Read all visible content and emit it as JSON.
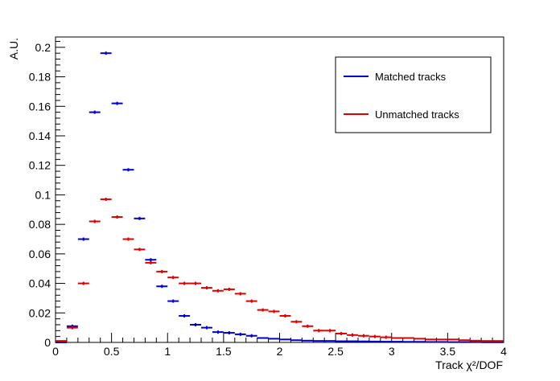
{
  "chart_data": {
    "type": "scatter",
    "title": "",
    "xlabel": "Track χ²/DOF",
    "ylabel": "A.U.",
    "xlim": [
      0,
      4
    ],
    "ylim": [
      0,
      0.207
    ],
    "x_ticks": [
      "0",
      "0.5",
      "1",
      "1.5",
      "2",
      "2.5",
      "3",
      "3.5",
      "4"
    ],
    "y_ticks": [
      "0",
      "0.02",
      "0.04",
      "0.06",
      "0.08",
      "0.1",
      "0.12",
      "0.14",
      "0.16",
      "0.18",
      "0.2"
    ],
    "bin_width": 0.1,
    "grid": false,
    "legend_position": "top-right",
    "series": [
      {
        "name": "Matched tracks",
        "color": "#0000cc",
        "x": [
          0.05,
          0.15,
          0.25,
          0.35,
          0.45,
          0.55,
          0.65,
          0.75,
          0.85,
          0.95,
          1.05,
          1.15,
          1.25,
          1.35,
          1.45,
          1.55,
          1.65,
          1.75,
          1.85,
          1.95,
          2.05,
          2.15,
          2.25,
          2.35,
          2.45,
          2.55,
          2.65,
          2.75,
          2.85,
          2.95,
          3.05,
          3.15,
          3.25,
          3.35,
          3.45,
          3.55,
          3.65,
          3.75,
          3.85,
          3.95
        ],
        "values": [
          0.0,
          0.011,
          0.07,
          0.156,
          0.196,
          0.162,
          0.117,
          0.084,
          0.056,
          0.038,
          0.028,
          0.018,
          0.012,
          0.01,
          0.007,
          0.0065,
          0.0055,
          0.0045,
          0.003,
          0.0025,
          0.002,
          0.0015,
          0.0012,
          0.001,
          0.001,
          0.0008,
          0.0008,
          0.0007,
          0.0006,
          0.0005,
          0.0005,
          0.0004,
          0.0004,
          0.0003,
          0.0003,
          0.0002,
          0.0002,
          0.0002,
          0.0001,
          0.0001
        ]
      },
      {
        "name": "Unmatched tracks",
        "color": "#dd0000",
        "x": [
          0.05,
          0.15,
          0.25,
          0.35,
          0.45,
          0.55,
          0.65,
          0.75,
          0.85,
          0.95,
          1.05,
          1.15,
          1.25,
          1.35,
          1.45,
          1.55,
          1.65,
          1.75,
          1.85,
          1.95,
          2.05,
          2.15,
          2.25,
          2.35,
          2.45,
          2.55,
          2.65,
          2.75,
          2.85,
          2.95,
          3.05,
          3.15,
          3.25,
          3.35,
          3.45,
          3.55,
          3.65,
          3.75,
          3.85,
          3.95
        ],
        "values": [
          0.001,
          0.01,
          0.04,
          0.082,
          0.097,
          0.085,
          0.07,
          0.063,
          0.054,
          0.048,
          0.044,
          0.04,
          0.04,
          0.037,
          0.035,
          0.036,
          0.033,
          0.028,
          0.022,
          0.021,
          0.018,
          0.014,
          0.011,
          0.008,
          0.008,
          0.006,
          0.005,
          0.0045,
          0.004,
          0.0035,
          0.003,
          0.003,
          0.0025,
          0.002,
          0.002,
          0.002,
          0.0015,
          0.0012,
          0.001,
          0.001
        ]
      }
    ]
  }
}
